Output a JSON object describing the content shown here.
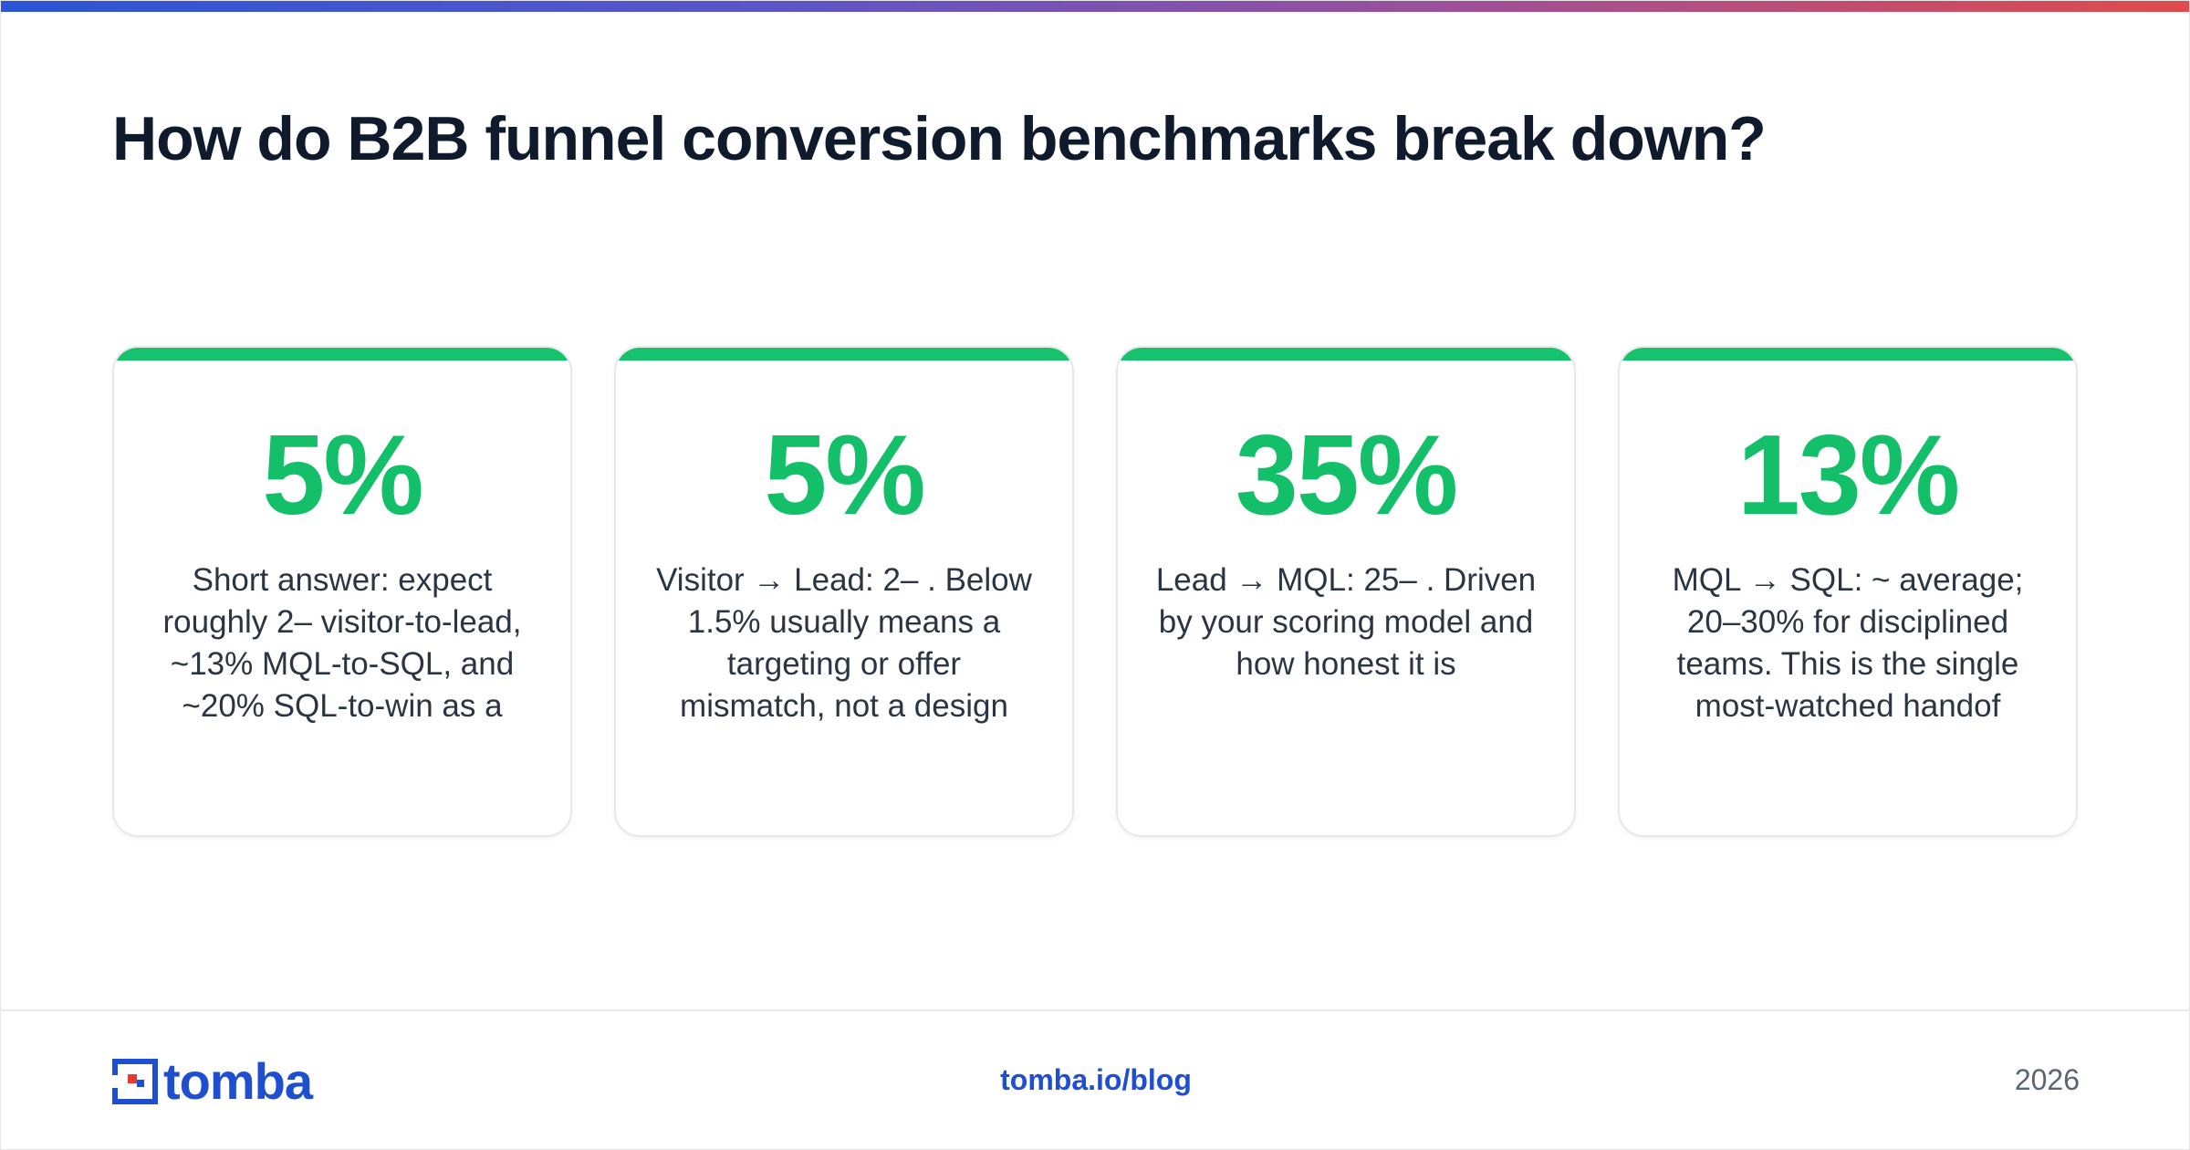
{
  "header": {
    "title": "How do B2B funnel conversion benchmarks break down?"
  },
  "cards": [
    {
      "stat": "5%",
      "description": "Short answer: expect roughly 2– visitor-to-lead, ~13% MQL-to-SQL, and ~20% SQL-to-win as a"
    },
    {
      "stat": "5%",
      "description": "Visitor → Lead: 2– . Below 1.5% usually means a targeting or offer mismatch, not a design"
    },
    {
      "stat": "35%",
      "description": "Lead → MQL: 25– . Driven by your scoring model and how honest it is"
    },
    {
      "stat": "13%",
      "description": "MQL → SQL: ~ average; 20–30% for disciplined teams. This is the single most-watched handof"
    }
  ],
  "footer": {
    "logo_text": "tomba",
    "link": "tomba.io/blog",
    "year": "2026"
  },
  "colors": {
    "accent_green": "#13bf69",
    "brand_blue": "#1f4fd1",
    "title": "#0f1b2d"
  },
  "icons": {
    "logo": "tomba-logo-icon"
  }
}
